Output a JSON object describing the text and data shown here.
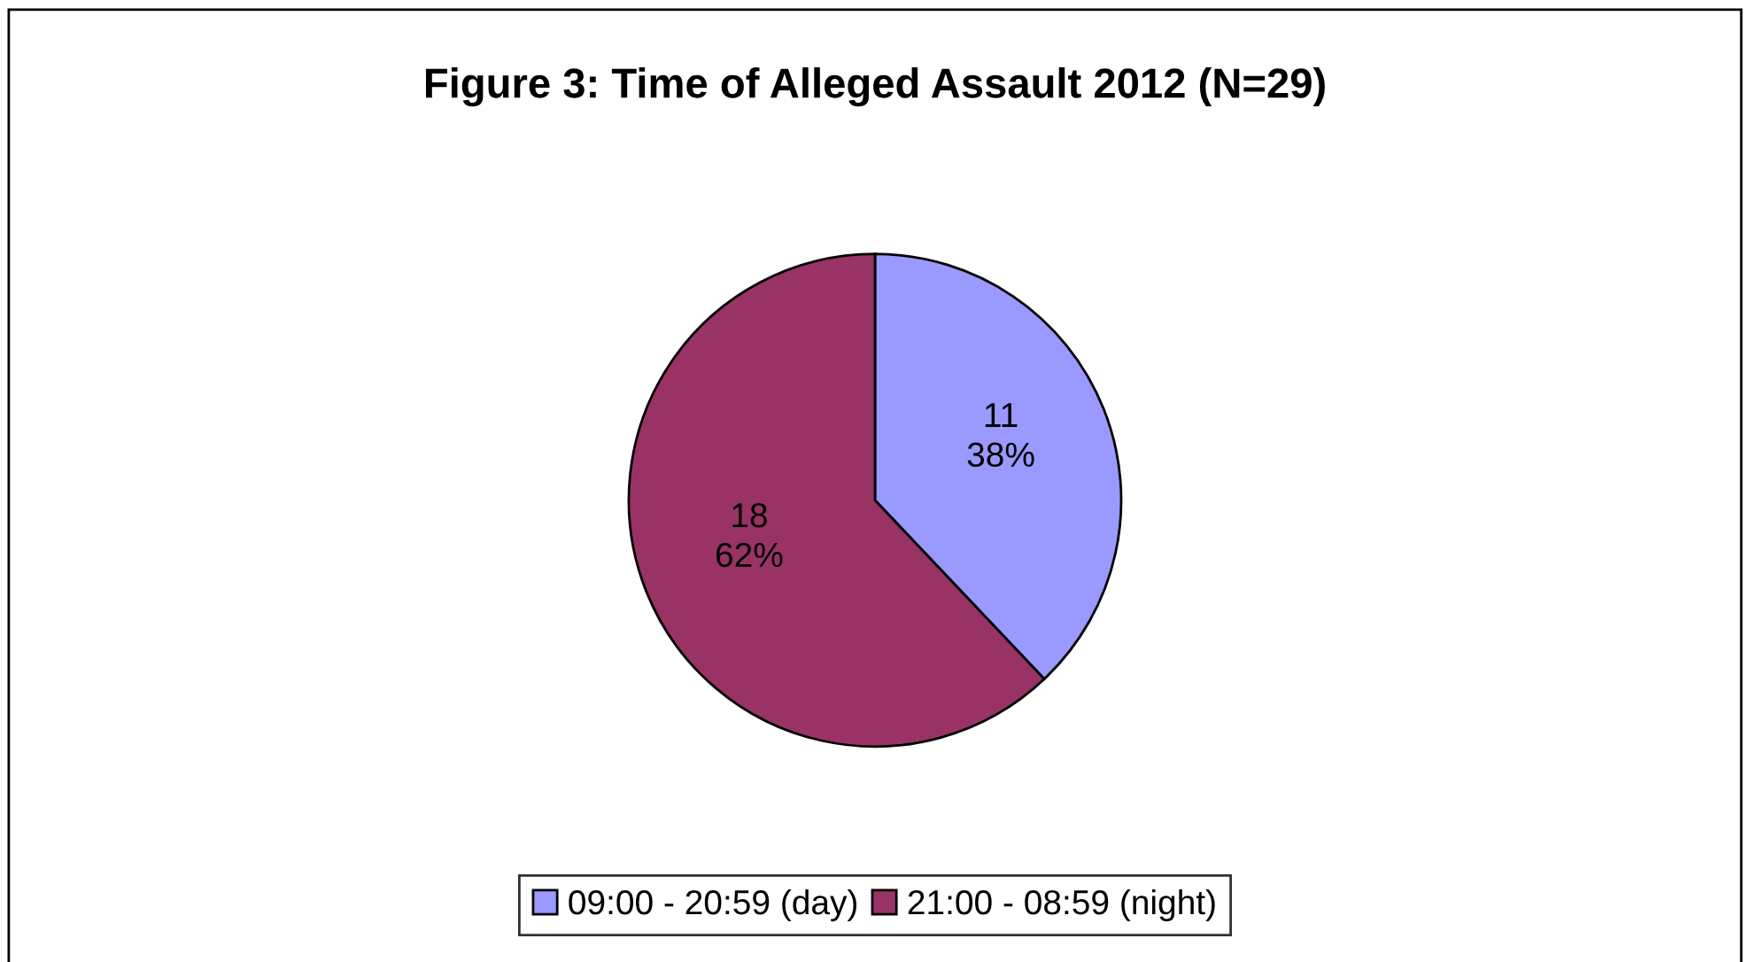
{
  "chart_data": {
    "type": "pie",
    "title": "Figure 3: Time of Alleged Assault 2012 (N=29)",
    "categories": [
      "09:00 - 20:59 (day)",
      "21:00 - 08:59 (night)"
    ],
    "values": [
      11,
      18
    ],
    "colors": [
      "#9999ff",
      "#993366"
    ],
    "value_labels": [
      "11\n38%",
      "18\n62%"
    ],
    "legend": "bottom"
  }
}
